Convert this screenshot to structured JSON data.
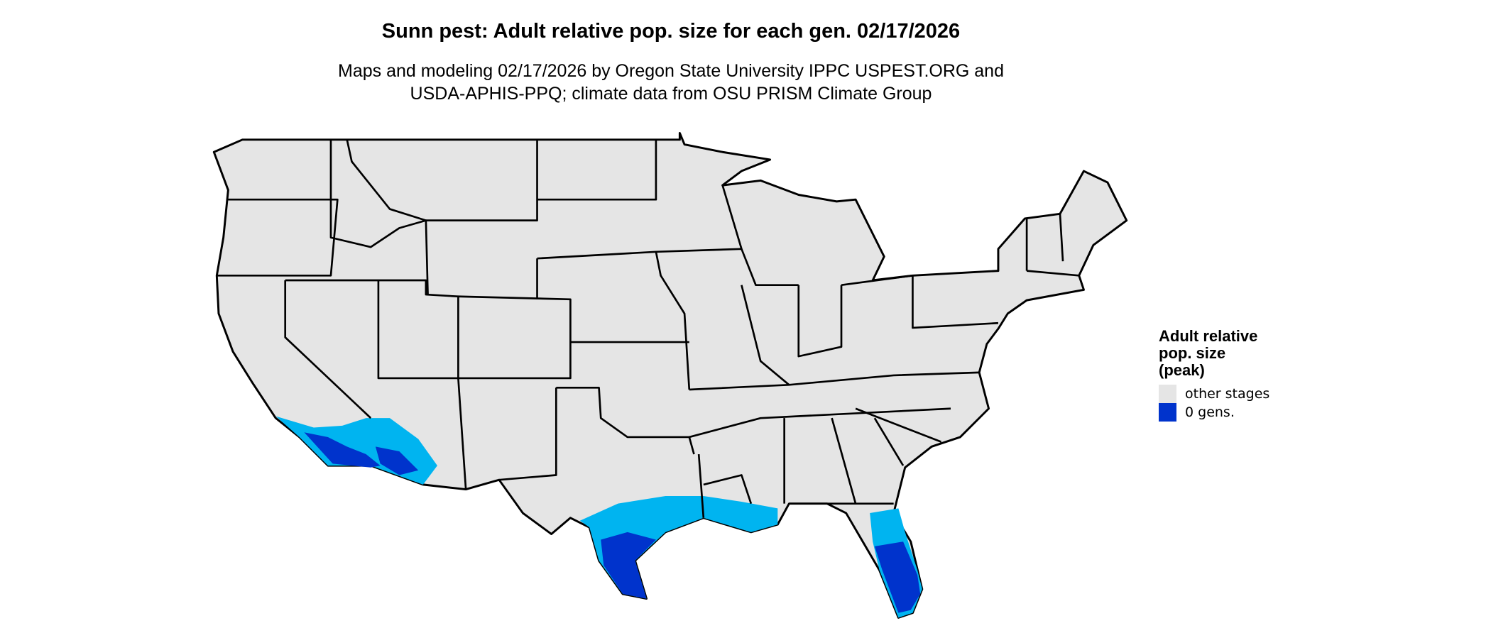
{
  "title": "Sunn pest: Adult relative pop. size for each gen. 02/17/2026",
  "subtitle_lines": [
    "Maps and modeling 02/17/2026 by Oregon State University IPPC USPEST.ORG and",
    "USDA-APHIS-PPQ; climate data from OSU PRISM Climate Group"
  ],
  "legend": {
    "title_lines": [
      "Adult relative",
      "pop. size",
      "(peak)"
    ],
    "items": [
      {
        "label": "other stages",
        "color": "#e5e5e5"
      },
      {
        "label": "0 gens.",
        "color": "#0033cc"
      }
    ]
  },
  "colors": {
    "land": "#e5e5e5",
    "light_blue": "#00b4f0",
    "mid_blue": "#0a5ee0",
    "dark_blue": "#0033cc",
    "border": "#000000"
  }
}
